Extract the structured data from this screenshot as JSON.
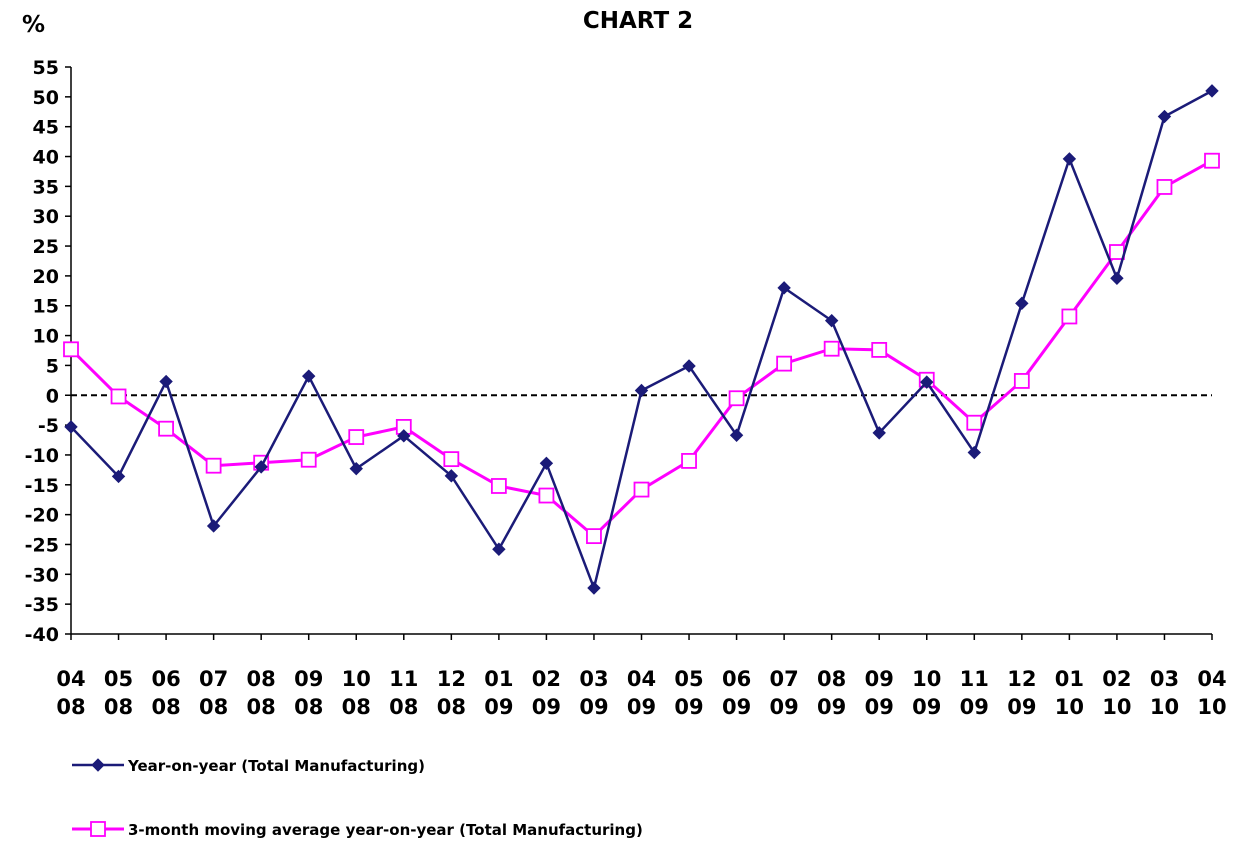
{
  "chart_data": {
    "type": "line",
    "title": "CHART 2",
    "ylabel": "%",
    "xlabel": "",
    "ylim": [
      -40,
      55
    ],
    "ytick_step": 5,
    "zero_line": "dashed",
    "grid": false,
    "legend_position": "bottom-left",
    "categories": [
      [
        "04",
        "08"
      ],
      [
        "05",
        "08"
      ],
      [
        "06",
        "08"
      ],
      [
        "07",
        "08"
      ],
      [
        "08",
        "08"
      ],
      [
        "09",
        "08"
      ],
      [
        "10",
        "08"
      ],
      [
        "11",
        "08"
      ],
      [
        "12",
        "08"
      ],
      [
        "01",
        "09"
      ],
      [
        "02",
        "09"
      ],
      [
        "03",
        "09"
      ],
      [
        "04",
        "09"
      ],
      [
        "05",
        "09"
      ],
      [
        "06",
        "09"
      ],
      [
        "07",
        "09"
      ],
      [
        "08",
        "09"
      ],
      [
        "09",
        "09"
      ],
      [
        "10",
        "09"
      ],
      [
        "11",
        "09"
      ],
      [
        "12",
        "09"
      ],
      [
        "01",
        "10"
      ],
      [
        "02",
        "10"
      ],
      [
        "03",
        "10"
      ],
      [
        "04",
        "10"
      ]
    ],
    "series": [
      {
        "name": "Year-on-year (Total Manufacturing)",
        "color": "#1b1b78",
        "marker": "diamond",
        "values": [
          -5.3,
          -13.6,
          2.3,
          -21.9,
          -12.0,
          3.2,
          -12.3,
          -6.8,
          -13.5,
          -25.8,
          -11.4,
          -32.3,
          0.8,
          4.9,
          -6.7,
          18.0,
          12.5,
          -6.3,
          2.2,
          -9.6,
          15.4,
          39.6,
          19.6,
          46.7,
          51.0
        ]
      },
      {
        "name": "3-month moving average year-on-year (Total Manufacturing)",
        "color": "#ff00ff",
        "marker": "square",
        "values": [
          7.7,
          -0.2,
          -5.6,
          -11.8,
          -11.3,
          -10.8,
          -7.0,
          -5.3,
          -10.7,
          -15.2,
          -16.8,
          -23.6,
          -15.8,
          -11.0,
          -0.5,
          5.3,
          7.8,
          7.6,
          2.6,
          -4.6,
          2.4,
          13.2,
          24.0,
          34.9,
          39.3
        ]
      }
    ]
  }
}
